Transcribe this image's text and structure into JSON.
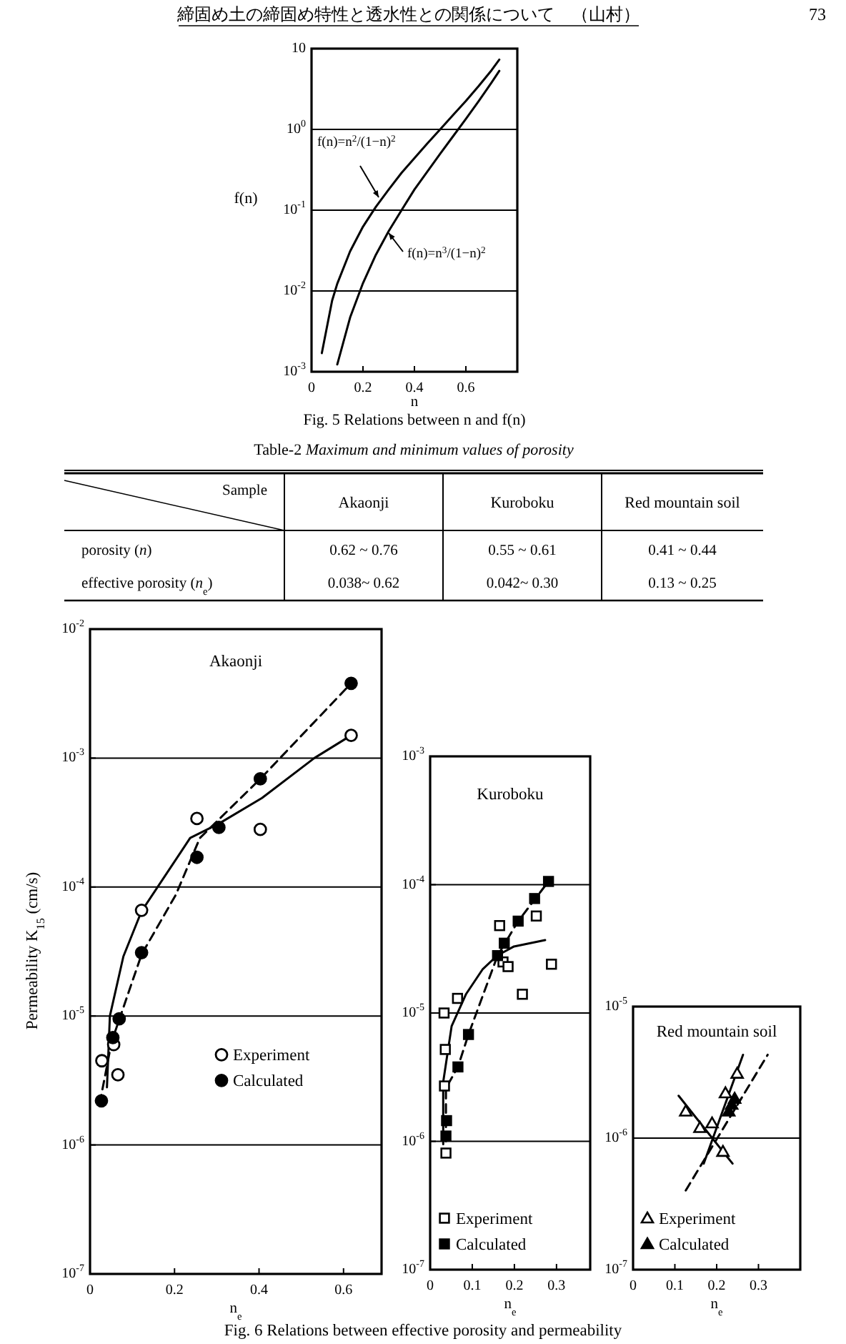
{
  "chart_data": [
    {
      "type": "line",
      "xlabel": "n",
      "ylabel": "f(n)",
      "log": "y",
      "grid": "y",
      "xlim": [
        0,
        0.8
      ],
      "ylim": [
        0.001,
        10
      ],
      "xticks": [
        0,
        0.2,
        0.4,
        0.6
      ],
      "yticks": [
        {
          "value": 0.001,
          "label": "10$^{-3}$"
        },
        {
          "value": 0.01,
          "label": "10$^{-2}$"
        },
        {
          "value": 0.1,
          "label": "10$^{-1}$"
        },
        {
          "value": 1,
          "label": "10$^{0}$"
        },
        10
      ],
      "series": [
        {
          "color": "#000000",
          "x": [
            0.04,
            0.08,
            0.1,
            0.15,
            0.2,
            0.25,
            0.3,
            0.35,
            0.4,
            0.45,
            0.5,
            0.55,
            0.6,
            0.65,
            0.7,
            0.73
          ],
          "values": [
            0.0017,
            0.0076,
            0.0123,
            0.031,
            0.0625,
            0.11,
            0.18,
            0.29,
            0.44,
            0.67,
            1.0,
            1.5,
            2.25,
            3.45,
            5.4,
            7.3
          ]
        },
        {
          "color": "#000000",
          "x": [
            0.1,
            0.15,
            0.2,
            0.25,
            0.3,
            0.35,
            0.4,
            0.45,
            0.5,
            0.55,
            0.6,
            0.65,
            0.7,
            0.73
          ],
          "values": [
            0.00123,
            0.0047,
            0.0125,
            0.028,
            0.055,
            0.1,
            0.18,
            0.3,
            0.5,
            0.82,
            1.35,
            2.24,
            3.8,
            5.3
          ]
        }
      ],
      "annotations": [
        "f(n)=n$^{2}$/(1−n)$^{2}$",
        "f(n)=n$^{3}$/(1−n)$^{2}$",
        "Fig. 5 Relations between n and f(n)",
        "締固め土の締固め特性と透水性との関係について　（山村）",
        "73"
      ]
    },
    {
      "type": "other",
      "title": "Table-2  *Maximum and minimum values of porosity*",
      "xlabel": "Sample",
      "categories": [
        "Akaonji",
        "Kuroboku",
        "Red mountain soil"
      ],
      "y_categories": [
        "porosity (*n*)",
        "effective porosity (*n*$_{e}$)"
      ],
      "cell_labels": [
        [
          "0.62 ~ 0.76",
          "0.55 ~ 0.61",
          "0.41 ~ 0.44"
        ],
        [
          "0.038~ 0.62",
          "0.042~ 0.30",
          "0.13 ~ 0.25"
        ]
      ]
    },
    {
      "type": "scatter",
      "title": "Akaonji",
      "xlabel": "n$_{e}$",
      "ylabel": "Permeability K$_{15}$ (cm/s)",
      "log": "y",
      "grid": "y",
      "legend": "right",
      "xlim": [
        0,
        0.69
      ],
      "ylim": [
        1e-07,
        0.01
      ],
      "xticks": [
        0,
        0.2,
        0.4,
        0.6
      ],
      "yticks": [
        {
          "value": 1e-07,
          "label": "10$^{-7}$"
        },
        {
          "value": 1e-06,
          "label": "10$^{-6}$"
        },
        {
          "value": 1e-05,
          "label": "10$^{-5}$"
        },
        {
          "value": 0.0001,
          "label": "10$^{-4}$"
        },
        {
          "value": 0.001,
          "label": "10$^{-3}$"
        },
        {
          "value": 0.01,
          "label": "10$^{-2}$"
        }
      ],
      "series": [
        {
          "type": "line",
          "line_style": "solid",
          "color": "#000000",
          "x": [
            0.04,
            0.047,
            0.079,
            0.122,
            0.237,
            0.305,
            0.407,
            0.531,
            0.618
          ],
          "values": [
            2.8e-06,
            1e-05,
            2.9e-05,
            6.5e-05,
            0.00024,
            0.00031,
            0.00049,
            0.001,
            0.0015
          ]
        },
        {
          "type": "line",
          "line_style": "dashed",
          "color": "#000000",
          "x": [
            0.023,
            0.051,
            0.122,
            0.203,
            0.26,
            0.403,
            0.618
          ],
          "values": [
            2.1e-06,
            6.3e-06,
            3e-05,
            8.7e-05,
            0.00024,
            0.00069,
            0.0038
          ]
        },
        {
          "type": "scatter",
          "name": "Experiment",
          "marker": "circle",
          "color": "#ffffff",
          "x": [
            0.028,
            0.056,
            0.066,
            0.122,
            0.253,
            0.403,
            0.618
          ],
          "values": [
            4.5e-06,
            6e-06,
            3.5e-06,
            6.6e-05,
            0.00034,
            0.00028,
            0.0015
          ]
        },
        {
          "type": "scatter",
          "name": "Calculated",
          "marker": "circle",
          "color": "#000000",
          "x": [
            0.027,
            0.054,
            0.069,
            0.122,
            0.253,
            0.305,
            0.403,
            0.618
          ],
          "values": [
            2.2e-06,
            6.8e-06,
            9.5e-06,
            3.1e-05,
            0.00017,
            0.00029,
            0.00069,
            0.0038
          ]
        }
      ],
      "annotations": [
        "Fig. 6 Relations between effective porosity and permeability"
      ]
    },
    {
      "type": "scatter",
      "title": "Kuroboku",
      "xlabel": "n$_{e}$",
      "log": "y",
      "grid": "y",
      "legend": "bottom left",
      "xlim": [
        0,
        0.38
      ],
      "ylim": [
        1e-07,
        0.001
      ],
      "xticks": [
        0,
        0.1,
        0.2,
        0.3
      ],
      "yticks": [
        {
          "value": 1e-07,
          "label": "10$^{-7}$"
        },
        {
          "value": 1e-06,
          "label": "10$^{-6}$"
        },
        {
          "value": 1e-05,
          "label": "10$^{-5}$"
        },
        {
          "value": 0.0001,
          "label": "10$^{-4}$"
        },
        {
          "value": 0.001,
          "label": "10$^{-3}$"
        }
      ],
      "series": [
        {
          "type": "line",
          "line_style": "solid",
          "color": "#000000",
          "x": [
            0.031,
            0.031,
            0.051,
            0.085,
            0.125,
            0.159,
            0.199,
            0.273
          ],
          "values": [
            9.5e-07,
            2.9e-06,
            7.9e-06,
            1.4e-05,
            2.2e-05,
            2.8e-05,
            3.3e-05,
            3.7e-05
          ]
        },
        {
          "type": "line",
          "line_style": "dashed",
          "color": "#000000",
          "x": [
            0.0375,
            0.0375,
            0.066,
            0.091,
            0.16,
            0.209,
            0.281
          ],
          "values": [
            1e-06,
            2.6e-06,
            3.8e-06,
            6.8e-06,
            2.8e-05,
            5.2e-05,
            0.000106
          ]
        },
        {
          "type": "scatter",
          "name": "Experiment",
          "marker": "square",
          "color": "#ffffff",
          "x": [
            0.0375,
            0.034,
            0.036,
            0.033,
            0.065,
            0.165,
            0.173,
            0.185,
            0.219,
            0.252,
            0.288
          ],
          "values": [
            8.1e-07,
            2.7e-06,
            5.2e-06,
            1e-05,
            1.3e-05,
            4.8e-05,
            2.5e-05,
            2.3e-05,
            1.4e-05,
            5.7e-05,
            2.4e-05
          ]
        },
        {
          "type": "scatter",
          "name": "Calculated",
          "marker": "square",
          "color": "#000000",
          "x": [
            0.0375,
            0.039,
            0.066,
            0.091,
            0.16,
            0.176,
            0.209,
            0.248,
            0.281
          ],
          "values": [
            1.1e-06,
            1.45e-06,
            3.8e-06,
            6.8e-06,
            2.8e-05,
            3.5e-05,
            5.2e-05,
            7.8e-05,
            0.000106
          ]
        }
      ]
    },
    {
      "type": "scatter",
      "title": "Red mountain soil",
      "xlabel": "n$_{e}$",
      "log": "y",
      "grid": "y",
      "legend": "bottom left",
      "xlim": [
        0,
        0.4
      ],
      "ylim": [
        1e-07,
        1e-05
      ],
      "xticks": [
        0,
        0.1,
        0.2,
        0.3
      ],
      "yticks": [
        {
          "value": 1e-07,
          "label": "10$^{-7}$"
        },
        {
          "value": 1e-06,
          "label": "10$^{-6}$"
        },
        {
          "value": 1e-05,
          "label": "10$^{-5}$"
        }
      ],
      "series": [
        {
          "type": "line",
          "line_style": "solid",
          "color": "#000000",
          "x": [
            0.109,
            0.238
          ],
          "values": [
            2.1e-06,
            6.4e-07
          ]
        },
        {
          "type": "line",
          "line_style": "solid",
          "color": "#000000",
          "x": [
            0.169,
            0.263
          ],
          "values": [
            6.4e-07,
            4.3e-06
          ]
        },
        {
          "type": "line",
          "line_style": "dashed",
          "color": "#000000",
          "x": [
            0.126,
            0.322
          ],
          "values": [
            4e-07,
            4.3e-06
          ]
        },
        {
          "type": "scatter",
          "name": "Experiment",
          "marker": "triangle",
          "color": "#ffffff",
          "x": [
            0.126,
            0.16,
            0.189,
            0.215,
            0.221,
            0.249
          ],
          "values": [
            1.6e-06,
            1.2e-06,
            1.3e-06,
            7.9e-07,
            2.2e-06,
            3.1e-06
          ]
        },
        {
          "type": "scatter",
          "name": "Calculated",
          "marker": "triangle",
          "color": "#000000",
          "x": [
            0.229,
            0.236,
            0.243
          ],
          "values": [
            1.6e-06,
            1.8e-06,
            2e-06
          ]
        }
      ]
    }
  ]
}
